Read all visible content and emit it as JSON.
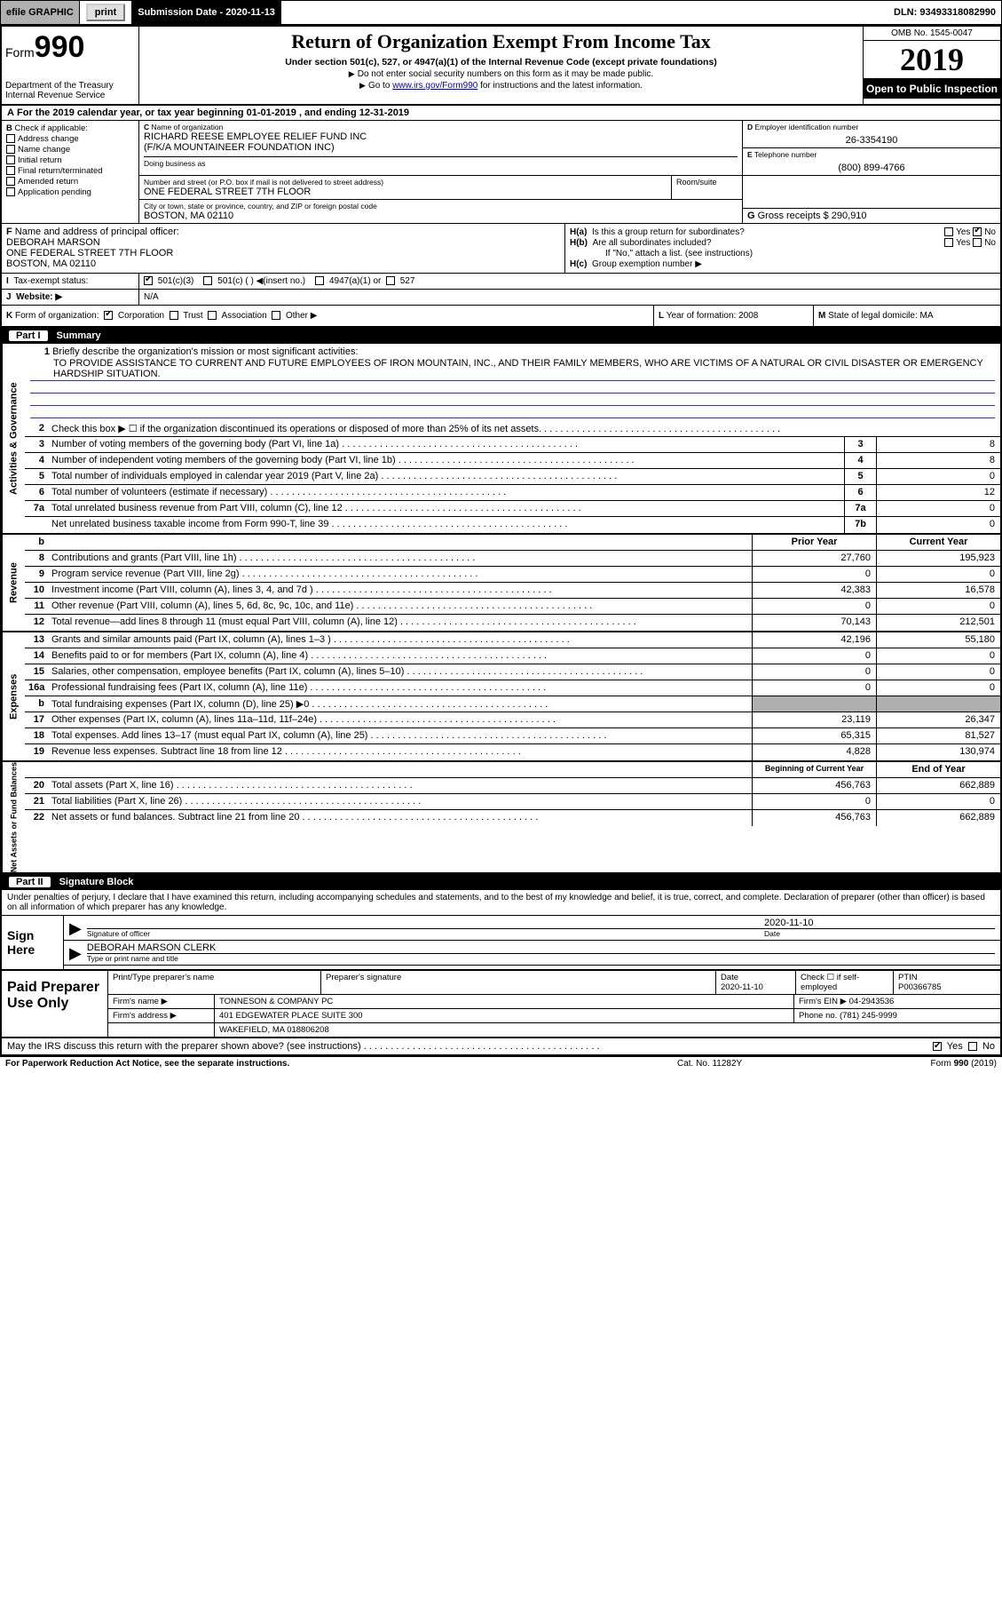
{
  "topbar": {
    "efile": "efile GRAPHIC",
    "print": "print",
    "subdate_label": "Submission Date - 2020-11-13",
    "dln": "DLN: 93493318082990"
  },
  "header": {
    "form_label": "Form",
    "form_no": "990",
    "dept": "Department of the Treasury\nInternal Revenue Service",
    "title": "Return of Organization Exempt From Income Tax",
    "sub1": "Under section 501(c), 527, or 4947(a)(1) of the Internal Revenue Code (except private foundations)",
    "sub2": "Do not enter social security numbers on this form as it may be made public.",
    "sub3_pre": "Go to ",
    "sub3_link": "www.irs.gov/Form990",
    "sub3_post": " for instructions and the latest information.",
    "omb": "OMB No. 1545-0047",
    "year": "2019",
    "otp": "Open to Public Inspection"
  },
  "row_a": "For the 2019 calendar year, or tax year beginning 01-01-2019    , and ending 12-31-2019",
  "box_b": {
    "label": "Check if applicable:",
    "opts": [
      "Address change",
      "Name change",
      "Initial return",
      "Final return/terminated",
      "Amended return",
      "Application pending"
    ]
  },
  "box_c": {
    "label": "Name of organization",
    "name1": "RICHARD REESE EMPLOYEE RELIEF FUND INC",
    "name2": "(F/K/A MOUNTAINEER FOUNDATION INC)",
    "dba_label": "Doing business as",
    "addr_label": "Number and street (or P.O. box if mail is not delivered to street address)",
    "addr": "ONE FEDERAL STREET 7TH FLOOR",
    "room_label": "Room/suite",
    "city_label": "City or town, state or province, country, and ZIP or foreign postal code",
    "city": "BOSTON, MA  02110"
  },
  "box_d": {
    "label": "Employer identification number",
    "val": "26-3354190"
  },
  "box_e": {
    "label": "Telephone number",
    "val": "(800) 899-4766"
  },
  "box_g": {
    "label": "Gross receipts $",
    "val": "290,910"
  },
  "box_f": {
    "label": "Name and address of principal officer:",
    "name": "DEBORAH MARSON",
    "addr": "ONE FEDERAL STREET 7TH FLOOR",
    "city": "BOSTON, MA  02110"
  },
  "box_h": {
    "a_label": "Is this a group return for subordinates?",
    "a_yes": "Yes",
    "a_no": "No",
    "b_label": "Are all subordinates included?",
    "b_note": "If \"No,\" attach a list. (see instructions)",
    "c_label": "Group exemption number ▶"
  },
  "row_i": {
    "label": "Tax-exempt status:",
    "o1": "501(c)(3)",
    "o2": "501(c) (   ) ◀(insert no.)",
    "o3": "4947(a)(1) or",
    "o4": "527"
  },
  "row_j": {
    "label": "Website: ▶",
    "val": "N/A"
  },
  "row_k": {
    "label": "Form of organization:",
    "opts": [
      "Corporation",
      "Trust",
      "Association",
      "Other ▶"
    ],
    "l_label": "Year of formation:",
    "l_val": "2008",
    "m_label": "State of legal domicile:",
    "m_val": "MA"
  },
  "part1": {
    "num": "Part I",
    "title": "Summary"
  },
  "mission": {
    "num": "1",
    "label": "Briefly describe the organization's mission or most significant activities:",
    "text": "TO PROVIDE ASSISTANCE TO CURRENT AND FUTURE EMPLOYEES OF IRON MOUNTAIN, INC., AND THEIR FAMILY MEMBERS, WHO ARE VICTIMS OF A NATURAL OR CIVIL DISASTER OR EMERGENCY HARDSHIP SITUATION."
  },
  "gov_lines": [
    {
      "n": "2",
      "t": "Check this box ▶ ☐ if the organization discontinued its operations or disposed of more than 25% of its net assets."
    },
    {
      "n": "3",
      "t": "Number of voting members of the governing body (Part VI, line 1a)",
      "box": "3",
      "v": "8"
    },
    {
      "n": "4",
      "t": "Number of independent voting members of the governing body (Part VI, line 1b)",
      "box": "4",
      "v": "8"
    },
    {
      "n": "5",
      "t": "Total number of individuals employed in calendar year 2019 (Part V, line 2a)",
      "box": "5",
      "v": "0"
    },
    {
      "n": "6",
      "t": "Total number of volunteers (estimate if necessary)",
      "box": "6",
      "v": "12"
    },
    {
      "n": "7a",
      "t": "Total unrelated business revenue from Part VIII, column (C), line 12",
      "box": "7a",
      "v": "0"
    },
    {
      "n": "",
      "t": "Net unrelated business taxable income from Form 990-T, line 39",
      "box": "7b",
      "v": "0"
    }
  ],
  "colhdr": {
    "prior": "Prior Year",
    "current": "Current Year"
  },
  "rev_lines": [
    {
      "n": "8",
      "t": "Contributions and grants (Part VIII, line 1h)",
      "p": "27,760",
      "c": "195,923"
    },
    {
      "n": "9",
      "t": "Program service revenue (Part VIII, line 2g)",
      "p": "0",
      "c": "0"
    },
    {
      "n": "10",
      "t": "Investment income (Part VIII, column (A), lines 3, 4, and 7d )",
      "p": "42,383",
      "c": "16,578"
    },
    {
      "n": "11",
      "t": "Other revenue (Part VIII, column (A), lines 5, 6d, 8c, 9c, 10c, and 11e)",
      "p": "0",
      "c": "0"
    },
    {
      "n": "12",
      "t": "Total revenue—add lines 8 through 11 (must equal Part VIII, column (A), line 12)",
      "p": "70,143",
      "c": "212,501"
    }
  ],
  "exp_lines": [
    {
      "n": "13",
      "t": "Grants and similar amounts paid (Part IX, column (A), lines 1–3 )",
      "p": "42,196",
      "c": "55,180"
    },
    {
      "n": "14",
      "t": "Benefits paid to or for members (Part IX, column (A), line 4)",
      "p": "0",
      "c": "0"
    },
    {
      "n": "15",
      "t": "Salaries, other compensation, employee benefits (Part IX, column (A), lines 5–10)",
      "p": "0",
      "c": "0"
    },
    {
      "n": "16a",
      "t": "Professional fundraising fees (Part IX, column (A), line 11e)",
      "p": "0",
      "c": "0"
    },
    {
      "n": "b",
      "t": "Total fundraising expenses (Part IX, column (D), line 25) ▶0",
      "p": "",
      "c": "",
      "shade": true
    },
    {
      "n": "17",
      "t": "Other expenses (Part IX, column (A), lines 11a–11d, 11f–24e)",
      "p": "23,119",
      "c": "26,347"
    },
    {
      "n": "18",
      "t": "Total expenses. Add lines 13–17 (must equal Part IX, column (A), line 25)",
      "p": "65,315",
      "c": "81,527"
    },
    {
      "n": "19",
      "t": "Revenue less expenses. Subtract line 18 from line 12",
      "p": "4,828",
      "c": "130,974"
    }
  ],
  "na_hdr": {
    "begin": "Beginning of Current Year",
    "end": "End of Year"
  },
  "na_lines": [
    {
      "n": "20",
      "t": "Total assets (Part X, line 16)",
      "p": "456,763",
      "c": "662,889"
    },
    {
      "n": "21",
      "t": "Total liabilities (Part X, line 26)",
      "p": "0",
      "c": "0"
    },
    {
      "n": "22",
      "t": "Net assets or fund balances. Subtract line 21 from line 20",
      "p": "456,763",
      "c": "662,889"
    }
  ],
  "vside": {
    "gov": "Activities & Governance",
    "rev": "Revenue",
    "exp": "Expenses",
    "na": "Net Assets or Fund Balances"
  },
  "part2": {
    "num": "Part II",
    "title": "Signature Block"
  },
  "sig": {
    "intro": "Under penalties of perjury, I declare that I have examined this return, including accompanying schedules and statements, and to the best of my knowledge and belief, it is true, correct, and complete. Declaration of preparer (other than officer) is based on all information of which preparer has any knowledge.",
    "here": "Sign Here",
    "officer_lbl": "Signature of officer",
    "date_lbl": "Date",
    "date": "2020-11-10",
    "name": "DEBORAH MARSON  CLERK",
    "name_lbl": "Type or print name and title"
  },
  "prep": {
    "label": "Paid Preparer Use Only",
    "h1": "Print/Type preparer's name",
    "h2": "Preparer's signature",
    "h3": "Date",
    "h3v": "2020-11-10",
    "h4": "Check ☐ if self-employed",
    "h5": "PTIN",
    "h5v": "P00366785",
    "firm_lbl": "Firm's name    ▶",
    "firm": "TONNESON & COMPANY PC",
    "ein_lbl": "Firm's EIN ▶",
    "ein": "04-2943536",
    "addr_lbl": "Firm's address ▶",
    "addr1": "401 EDGEWATER PLACE SUITE 300",
    "addr2": "WAKEFIELD, MA  018806208",
    "phone_lbl": "Phone no.",
    "phone": "(781) 245-9999"
  },
  "discuss": {
    "q": "May the IRS discuss this return with the preparer shown above? (see instructions)",
    "yes": "Yes",
    "no": "No"
  },
  "footer": {
    "pra": "For Paperwork Reduction Act Notice, see the separate instructions.",
    "cat": "Cat. No. 11282Y",
    "form": "Form 990 (2019)"
  },
  "letters": {
    "A": "A",
    "B": "B",
    "C": "C",
    "D": "D",
    "E": "E",
    "F": "F",
    "G": "G",
    "H_a": "H(a)",
    "H_b": "H(b)",
    "H_c": "H(c)",
    "I": "I",
    "J": "J",
    "K": "K",
    "L": "L",
    "M": "M",
    "b": "b"
  }
}
